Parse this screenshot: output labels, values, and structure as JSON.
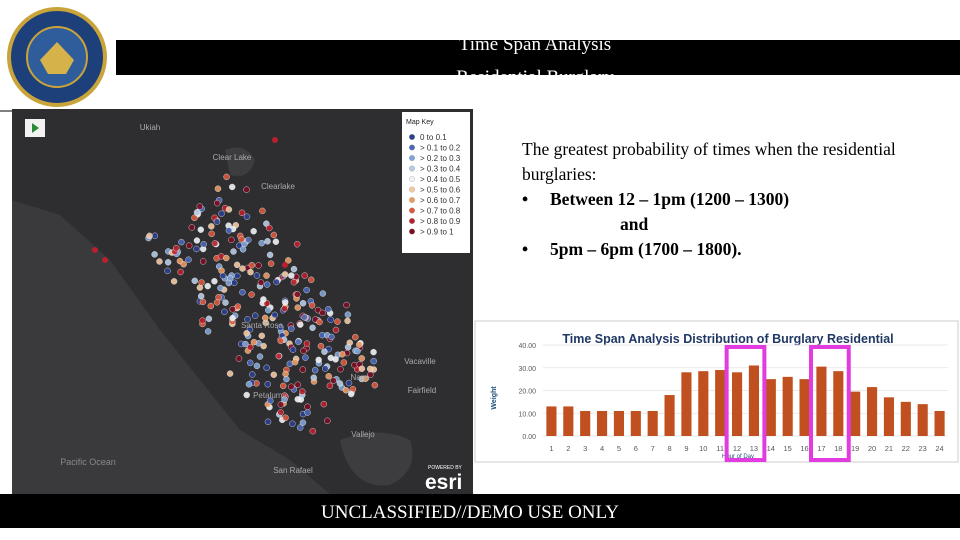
{
  "header": {
    "title": "Time Span Analysis",
    "subtitle": "Residential Burglary"
  },
  "map": {
    "labels": [
      "Ukiah",
      "Clear Lake",
      "Clearlake",
      "Santa Rosa",
      "Napa",
      "Vacaville",
      "Fairfield",
      "Petaluma",
      "Vallejo",
      "San Rafael",
      "Pacific Ocean"
    ],
    "key": {
      "title": "Map Key",
      "items": [
        {
          "label": "0 to 0.1",
          "color": "#2b3f8f"
        },
        {
          "label": "> 0.1 to 0.2",
          "color": "#4a67b8"
        },
        {
          "label": "> 0.2 to 0.3",
          "color": "#7fa3d6"
        },
        {
          "label": "> 0.3 to 0.4",
          "color": "#b5cbe6"
        },
        {
          "label": "> 0.4 to 0.5",
          "color": "#eef2f6"
        },
        {
          "label": "> 0.5 to 0.6",
          "color": "#f3c7a0"
        },
        {
          "label": "> 0.6 to 0.7",
          "color": "#ea9a64"
        },
        {
          "label": "> 0.7 to 0.8",
          "color": "#d9583e"
        },
        {
          "label": "> 0.8 to 0.9",
          "color": "#b8202e"
        },
        {
          "label": "> 0.9 to 1",
          "color": "#7a0d24"
        }
      ]
    },
    "attribution": {
      "powered": "POWERED BY",
      "brand": "esri"
    }
  },
  "text": {
    "intro": "The greatest probability of times when the residential burglaries:",
    "bullets": [
      "Between 12 – 1pm (1200 – 1300)",
      "and",
      "5pm – 6pm (1700 – 1800)."
    ]
  },
  "chart_data": {
    "type": "bar",
    "title": "Time Span Analysis Distribution of Burglary Residential",
    "y_label": "Weight",
    "x_label": "Hour of Day",
    "color": "#c0501f",
    "categories": [
      "1",
      "2",
      "3",
      "4",
      "5",
      "6",
      "7",
      "8",
      "9",
      "10",
      "11",
      "12",
      "13",
      "14",
      "15",
      "16",
      "17",
      "18",
      "19",
      "20",
      "21",
      "22",
      "23",
      "24"
    ],
    "values": [
      13,
      13,
      11,
      11,
      11,
      11,
      11,
      18,
      28,
      28.5,
      29,
      28,
      31,
      25,
      26,
      25,
      30.5,
      28.5,
      19.5,
      21.5,
      17,
      15,
      14,
      11
    ],
    "ylim": [
      0,
      40
    ],
    "yticks": [
      {
        "value": 0,
        "label": "0.00"
      },
      {
        "value": 10,
        "label": "10.00"
      },
      {
        "value": 20,
        "label": "20.00"
      },
      {
        "value": 30,
        "label": "30.00"
      },
      {
        "value": 40,
        "label": "40.00"
      }
    ]
  },
  "footer": {
    "classification": "UNCLASSIFIED//DEMO USE ONLY"
  }
}
